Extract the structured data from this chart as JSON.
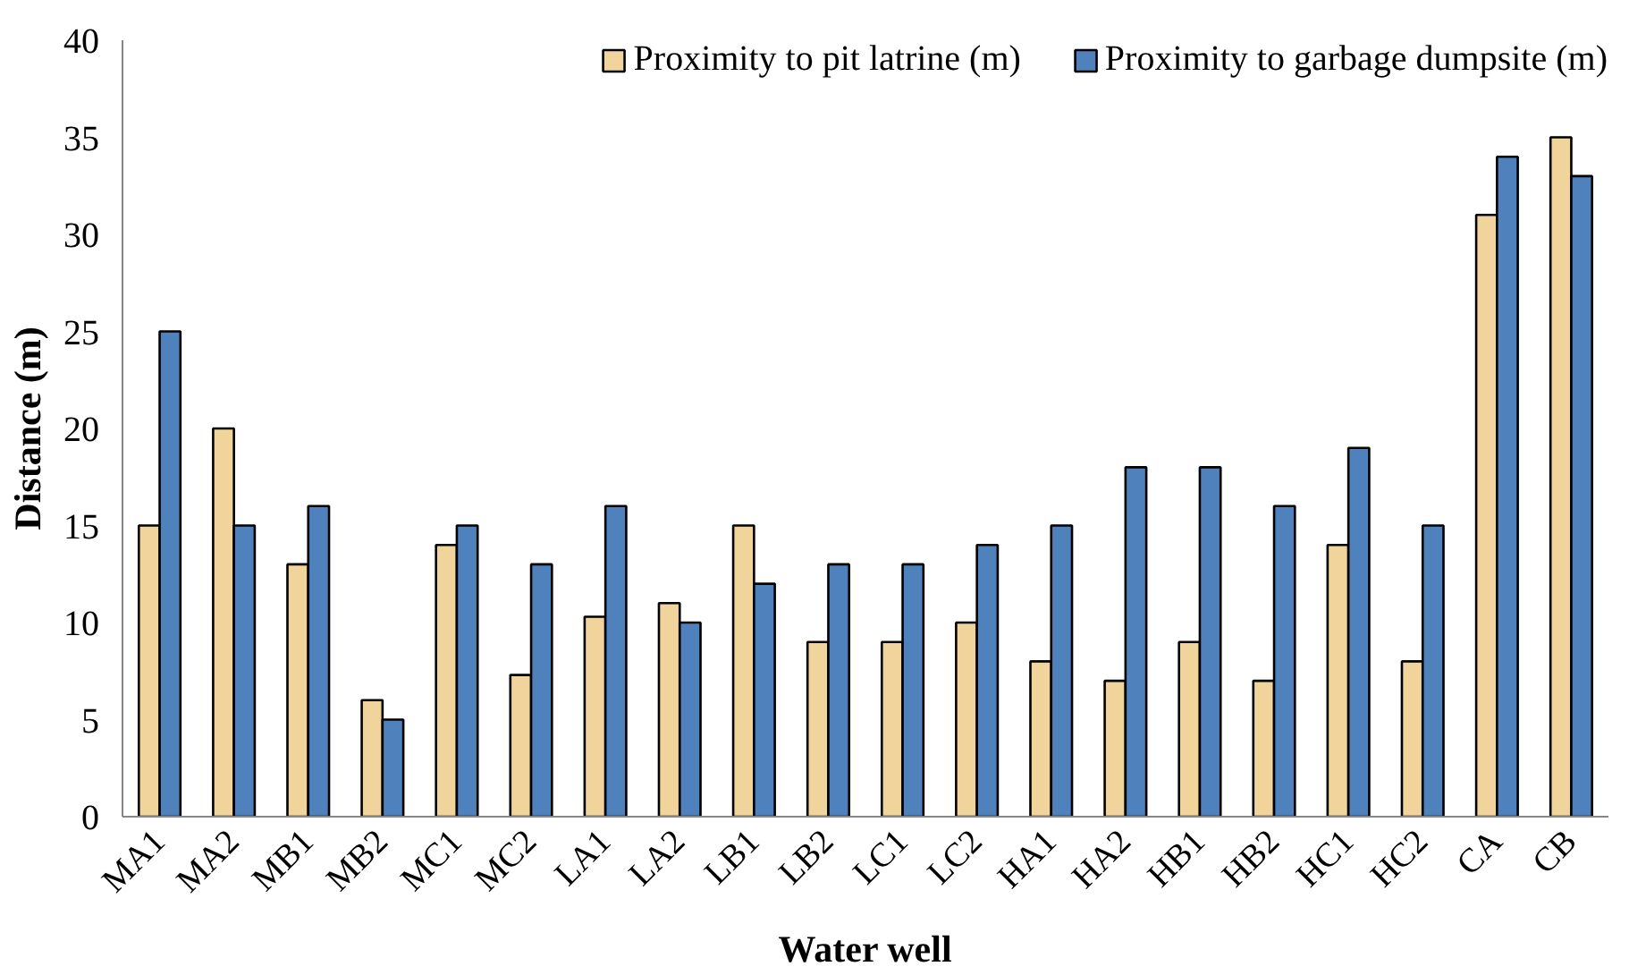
{
  "chart_data": {
    "type": "bar",
    "xlabel": "Water well",
    "ylabel": "Distance (m)",
    "categories": [
      "MA1",
      "MA2",
      "MB1",
      "MB2",
      "MC1",
      "MC2",
      "LA1",
      "LA2",
      "LB1",
      "LB2",
      "LC1",
      "LC2",
      "HA1",
      "HA2",
      "HB1",
      "HB2",
      "HC1",
      "HC2",
      "CA",
      "CB"
    ],
    "series": [
      {
        "name": "Proximity to pit latrine (m)",
        "color": "#f0d49c",
        "values": [
          15,
          20,
          13,
          6,
          14,
          7.3,
          10.3,
          11,
          15,
          9,
          9,
          10,
          8,
          7,
          9,
          7,
          14,
          8,
          31,
          35
        ]
      },
      {
        "name": "Proximity to garbage dumpsite (m)",
        "color": "#4f81bd",
        "values": [
          25,
          15,
          16,
          5,
          15,
          13,
          16,
          10,
          12,
          13,
          13,
          14,
          15,
          18,
          18,
          16,
          19,
          15,
          34,
          33
        ]
      }
    ],
    "ylim": [
      0,
      40
    ],
    "yticks": [
      0,
      5,
      10,
      15,
      20,
      25,
      30,
      35,
      40
    ],
    "legend": "top right",
    "grid": false
  }
}
